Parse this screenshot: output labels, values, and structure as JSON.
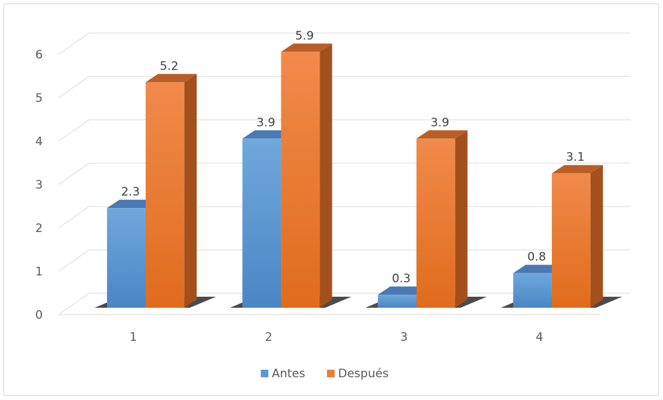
{
  "chart_data": {
    "type": "bar",
    "categories": [
      "1",
      "2",
      "3",
      "4"
    ],
    "series": [
      {
        "name": "Antes",
        "values": [
          2.3,
          3.9,
          0.3,
          0.8
        ],
        "color": "#5b9bd5"
      },
      {
        "name": "Después",
        "values": [
          5.2,
          5.9,
          3.9,
          3.1
        ],
        "color": "#ed7d31"
      }
    ],
    "y_ticks": [
      "0",
      "1",
      "2",
      "3",
      "4",
      "5",
      "6"
    ],
    "ylim": [
      0,
      6
    ],
    "grid": true,
    "legend_position": "bottom",
    "title": "",
    "xlabel": "",
    "ylabel": ""
  }
}
